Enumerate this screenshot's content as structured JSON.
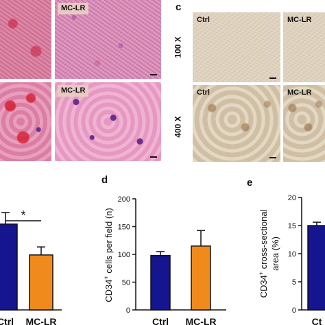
{
  "panels": {
    "c": {
      "letter": "c"
    },
    "d": {
      "letter": "d"
    },
    "e": {
      "letter": "e"
    }
  },
  "micrographs": {
    "he_top_right_label": "MC-LR",
    "he_bottom_right_label": "MC-LR",
    "ihc_top_left_label": "Ctrl",
    "ihc_top_right_label": "MC-LR",
    "ihc_bottom_left_label": "Ctrl",
    "ihc_bottom_right_label": "MC-LR",
    "mag_low": "100 X",
    "mag_high": "400 X"
  },
  "colors": {
    "ctrl_bar": "#15158f",
    "mclr_bar": "#f08a1c",
    "axis": "#111111"
  },
  "chart_data": [
    {
      "type": "bar",
      "panel": "left (partial)",
      "categories": [
        "Ctrl",
        "MC-LR"
      ],
      "values": [
        0.75,
        0.48
      ],
      "errors": [
        0.1,
        0.07
      ],
      "significance": {
        "between": [
          "Ctrl",
          "MC-LR"
        ],
        "label": "*"
      },
      "tick_labels": [
        "Ctrl",
        "MC-LR"
      ]
    },
    {
      "type": "bar",
      "panel": "d",
      "categories": [
        "Ctrl",
        "MC-LR"
      ],
      "values": [
        98,
        115
      ],
      "errors": [
        7,
        28
      ],
      "ylabel_prefix": "CD34",
      "ylabel_sup": "+",
      "ylabel_suffix": " cells per field  (n)",
      "ylim": [
        0,
        200
      ],
      "yticks": [
        "0",
        "50",
        "100",
        "150",
        "200"
      ],
      "tick_labels": [
        "Ctrl",
        "MC-LR"
      ]
    },
    {
      "type": "bar",
      "panel": "e",
      "categories": [
        "Ctrl"
      ],
      "values": [
        15
      ],
      "errors": [
        0.6
      ],
      "ylabel_line1_prefix": "CD34",
      "ylabel_line1_sup": "+",
      "ylabel_line1_suffix": " cross-sectional",
      "ylabel_line2": "area  (%)",
      "ylim": [
        0,
        20
      ],
      "yticks": [
        "0",
        "5",
        "10",
        "15",
        "20"
      ],
      "tick_labels": [
        "Ct"
      ]
    }
  ]
}
